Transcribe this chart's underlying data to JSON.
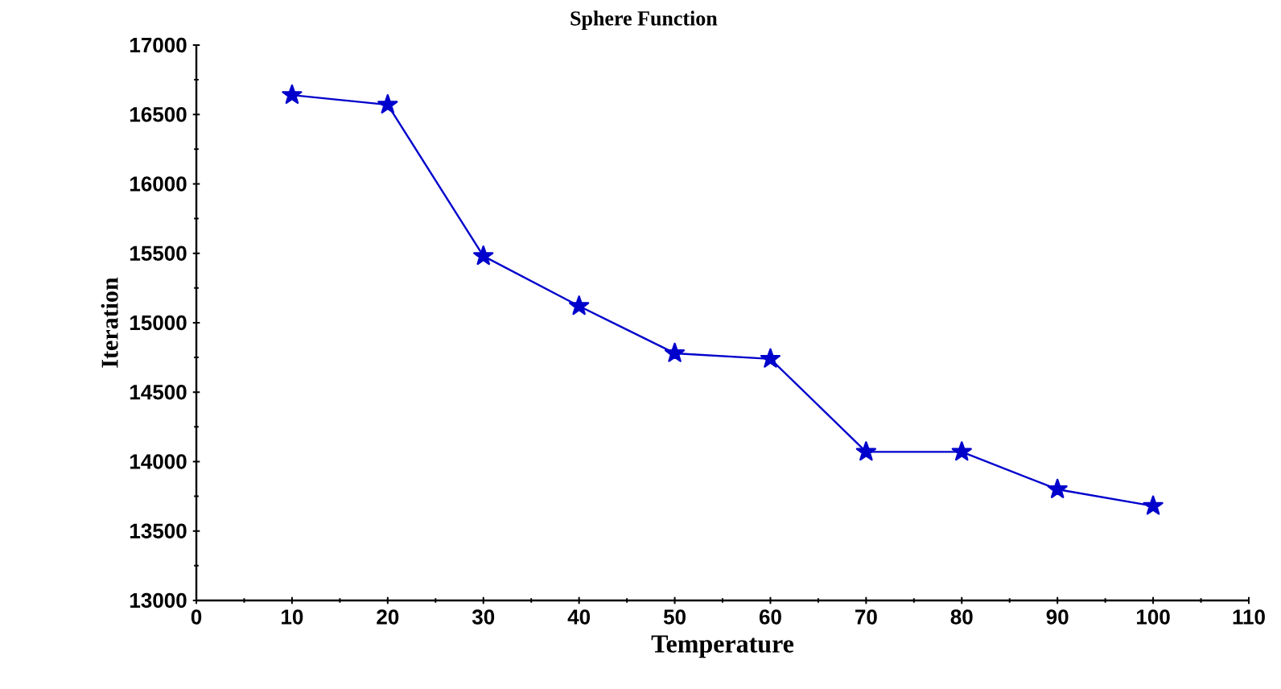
{
  "chart_data": {
    "type": "line",
    "title": "Sphere Function",
    "xlabel": "Temperature",
    "ylabel": "Iteration",
    "x": [
      10,
      20,
      30,
      40,
      50,
      60,
      70,
      80,
      90,
      100
    ],
    "series": [
      {
        "color": "#0000cc",
        "values": [
          16640,
          16570,
          15480,
          15120,
          14780,
          14740,
          14070,
          14070,
          13800,
          13680
        ]
      }
    ],
    "xlim": [
      0,
      110
    ],
    "xticks": [
      0,
      10,
      20,
      30,
      40,
      50,
      60,
      70,
      80,
      90,
      100,
      110
    ],
    "ylim": [
      13000,
      17000
    ],
    "yticks": [
      13000,
      13500,
      14000,
      14500,
      15000,
      15500,
      16000,
      16500,
      17000
    ],
    "marker": "star",
    "line_style": "solid"
  }
}
